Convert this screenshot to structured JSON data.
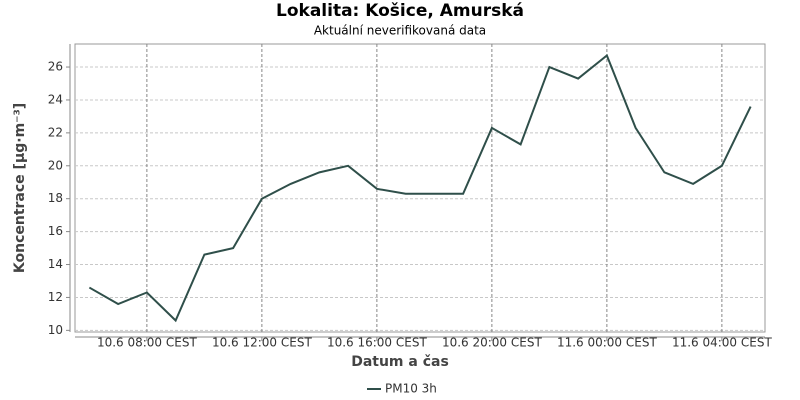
{
  "chart_data": {
    "type": "line",
    "title": "Lokalita: Košice, Amurská",
    "subtitle": "Aktuální neverifikovaná data",
    "x_label": "Datum a čas",
    "y_label": "Koncentrace [µg·m⁻³]",
    "categories": [
      null,
      null,
      "10.6 08:00 CEST",
      null,
      null,
      null,
      "10.6 12:00 CEST",
      null,
      null,
      null,
      "10.6 16:00 CEST",
      null,
      null,
      null,
      "10.6 20:00 CEST",
      null,
      null,
      null,
      "11.6 00:00 CEST",
      null,
      null,
      null,
      "11.6 04:00 CEST",
      null
    ],
    "series": [
      {
        "name": "PM10 3h",
        "color": "#2f4f4a",
        "values": [
          12.6,
          11.6,
          12.3,
          10.6,
          14.6,
          15.0,
          18.0,
          18.9,
          19.6,
          20.0,
          18.6,
          18.3,
          18.3,
          18.3,
          22.3,
          21.3,
          26.0,
          25.3,
          26.7,
          22.3,
          19.6,
          18.9,
          20.0,
          23.6
        ]
      }
    ],
    "ylim": [
      9.9,
      27.4
    ],
    "yticks": [
      10,
      12,
      14,
      16,
      18,
      20,
      22,
      24,
      26
    ],
    "grid": true,
    "legend": "bottom"
  }
}
